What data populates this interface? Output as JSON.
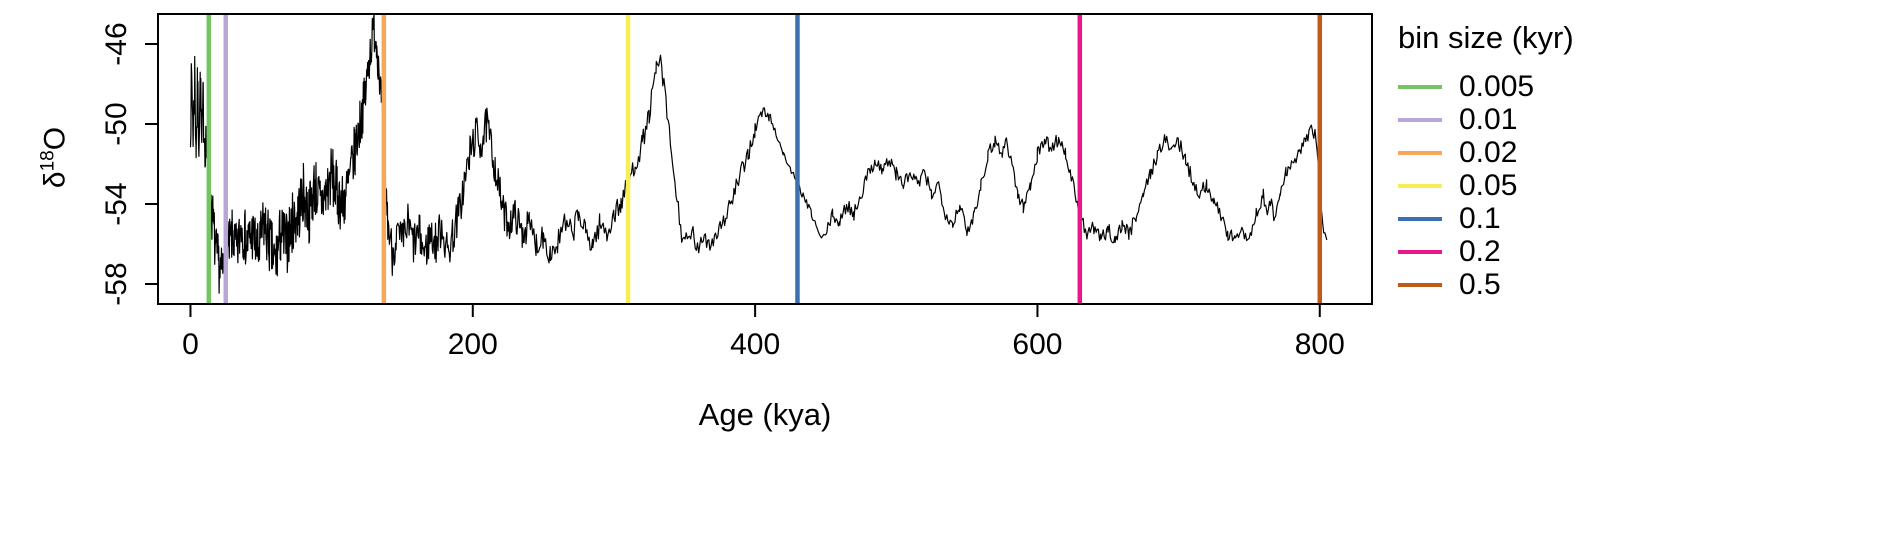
{
  "figure": {
    "xlabel": "Age (kya)",
    "ylabel": "δ¹⁸O",
    "ylabel_parts": {
      "delta": "δ",
      "superscript": "18",
      "element": "O"
    }
  },
  "legend": {
    "title": "bin size (kyr)",
    "entries": [
      {
        "label": "0.005",
        "color": "#74c365"
      },
      {
        "label": "0.01",
        "color": "#b9a6d9"
      },
      {
        "label": "0.02",
        "color": "#f9a65a"
      },
      {
        "label": "0.05",
        "color": "#f7ee55"
      },
      {
        "label": "0.1",
        "color": "#3c6fb0"
      },
      {
        "label": "0.2",
        "color": "#e8178a"
      },
      {
        "label": "0.5",
        "color": "#bf5b17"
      }
    ]
  },
  "chart_data": {
    "type": "line",
    "xlabel": "Age (kya)",
    "ylabel": "δ18O",
    "xlim": [
      -23,
      837
    ],
    "ylim": [
      -59,
      -44.5
    ],
    "x_ticks": [
      0,
      200,
      400,
      600,
      800
    ],
    "y_ticks": [
      -58,
      -54,
      -50,
      -46
    ],
    "grid": false,
    "legend_position": "right",
    "line_color": "#000000",
    "vlines": [
      {
        "x": 13,
        "bin_size": "0.005",
        "color": "#74c365"
      },
      {
        "x": 25,
        "bin_size": "0.01",
        "color": "#b9a6d9"
      },
      {
        "x": 137,
        "bin_size": "0.02",
        "color": "#f9a65a"
      },
      {
        "x": 310,
        "bin_size": "0.05",
        "color": "#f7ee55"
      },
      {
        "x": 430,
        "bin_size": "0.1",
        "color": "#3c6fb0"
      },
      {
        "x": 630,
        "bin_size": "0.2",
        "color": "#e8178a"
      },
      {
        "x": 800,
        "bin_size": "0.5",
        "color": "#bf5b17"
      }
    ],
    "points": [
      [
        0,
        -49.5
      ],
      [
        1,
        -48
      ],
      [
        2,
        -50.5
      ],
      [
        3,
        -47.5
      ],
      [
        4,
        -51
      ],
      [
        5,
        -48.5
      ],
      [
        6,
        -50.5
      ],
      [
        7,
        -48
      ],
      [
        8,
        -51.5
      ],
      [
        9,
        -49
      ],
      [
        10,
        -50.5
      ],
      [
        11,
        -51
      ],
      [
        12,
        -52
      ],
      [
        14,
        -53.5
      ],
      [
        16,
        -55
      ],
      [
        18,
        -56.5
      ],
      [
        20,
        -57
      ],
      [
        22,
        -57.5
      ],
      [
        24,
        -57
      ],
      [
        26,
        -56.5
      ],
      [
        28,
        -56
      ],
      [
        30,
        -55.5
      ],
      [
        33,
        -56.5
      ],
      [
        36,
        -55
      ],
      [
        40,
        -56
      ],
      [
        44,
        -55.5
      ],
      [
        48,
        -56.5
      ],
      [
        52,
        -55
      ],
      [
        56,
        -56
      ],
      [
        60,
        -57
      ],
      [
        64,
        -55.5
      ],
      [
        68,
        -56
      ],
      [
        72,
        -55
      ],
      [
        76,
        -54.5
      ],
      [
        80,
        -53.5
      ],
      [
        84,
        -54.5
      ],
      [
        88,
        -53
      ],
      [
        92,
        -54
      ],
      [
        96,
        -53.5
      ],
      [
        100,
        -52.5
      ],
      [
        104,
        -53.5
      ],
      [
        108,
        -54
      ],
      [
        112,
        -53
      ],
      [
        116,
        -51.5
      ],
      [
        120,
        -50
      ],
      [
        124,
        -48.5
      ],
      [
        127,
        -46.5
      ],
      [
        130,
        -45.2
      ],
      [
        132,
        -46
      ],
      [
        134,
        -47.5
      ],
      [
        136,
        -50
      ],
      [
        138,
        -53
      ],
      [
        140,
        -55
      ],
      [
        143,
        -56.5
      ],
      [
        146,
        -55.5
      ],
      [
        150,
        -56
      ],
      [
        154,
        -55
      ],
      [
        158,
        -56
      ],
      [
        162,
        -55.5
      ],
      [
        166,
        -56.5
      ],
      [
        170,
        -55.5
      ],
      [
        174,
        -56
      ],
      [
        178,
        -55
      ],
      [
        182,
        -56.5
      ],
      [
        186,
        -55.5
      ],
      [
        190,
        -54.5
      ],
      [
        194,
        -53
      ],
      [
        198,
        -51.5
      ],
      [
        202,
        -50.5
      ],
      [
        206,
        -51
      ],
      [
        210,
        -50
      ],
      [
        214,
        -51.5
      ],
      [
        218,
        -53
      ],
      [
        222,
        -54.5
      ],
      [
        226,
        -55
      ],
      [
        230,
        -54.5
      ],
      [
        235,
        -55.5
      ],
      [
        240,
        -55
      ],
      [
        245,
        -56
      ],
      [
        250,
        -55.5
      ],
      [
        255,
        -56.5
      ],
      [
        260,
        -56
      ],
      [
        265,
        -55
      ],
      [
        270,
        -55.5
      ],
      [
        275,
        -54.5
      ],
      [
        280,
        -55.5
      ],
      [
        285,
        -56
      ],
      [
        290,
        -55
      ],
      [
        295,
        -55.5
      ],
      [
        300,
        -54.5
      ],
      [
        305,
        -54
      ],
      [
        310,
        -53
      ],
      [
        315,
        -52
      ],
      [
        320,
        -51
      ],
      [
        325,
        -49.5
      ],
      [
        330,
        -47.3
      ],
      [
        333,
        -46.8
      ],
      [
        336,
        -48.5
      ],
      [
        340,
        -51
      ],
      [
        344,
        -53.5
      ],
      [
        348,
        -55.5
      ],
      [
        352,
        -56
      ],
      [
        356,
        -55.5
      ],
      [
        360,
        -56.5
      ],
      [
        364,
        -55.5
      ],
      [
        368,
        -56
      ],
      [
        372,
        -55.5
      ],
      [
        376,
        -55
      ],
      [
        380,
        -54.5
      ],
      [
        385,
        -53.5
      ],
      [
        390,
        -52.5
      ],
      [
        395,
        -51.5
      ],
      [
        400,
        -50.3
      ],
      [
        405,
        -49.4
      ],
      [
        410,
        -49.6
      ],
      [
        415,
        -50.5
      ],
      [
        420,
        -51.5
      ],
      [
        430,
        -53
      ],
      [
        440,
        -54.5
      ],
      [
        447,
        -55.8
      ],
      [
        450,
        -55.5
      ],
      [
        455,
        -54.5
      ],
      [
        460,
        -55
      ],
      [
        465,
        -54
      ],
      [
        470,
        -54.5
      ],
      [
        475,
        -53.5
      ],
      [
        480,
        -52.5
      ],
      [
        485,
        -51.8
      ],
      [
        490,
        -52.3
      ],
      [
        495,
        -51.8
      ],
      [
        500,
        -52.5
      ],
      [
        505,
        -53
      ],
      [
        510,
        -52.5
      ],
      [
        515,
        -53
      ],
      [
        520,
        -52.5
      ],
      [
        525,
        -53.5
      ],
      [
        530,
        -53
      ],
      [
        535,
        -54.5
      ],
      [
        540,
        -55
      ],
      [
        545,
        -54
      ],
      [
        550,
        -55.5
      ],
      [
        555,
        -54.5
      ],
      [
        560,
        -53
      ],
      [
        565,
        -51.5
      ],
      [
        570,
        -50.8
      ],
      [
        575,
        -51.5
      ],
      [
        578,
        -50.8
      ],
      [
        582,
        -52
      ],
      [
        586,
        -53.5
      ],
      [
        590,
        -54.2
      ],
      [
        595,
        -53
      ],
      [
        600,
        -51.5
      ],
      [
        605,
        -50.8
      ],
      [
        610,
        -51.2
      ],
      [
        615,
        -50.7
      ],
      [
        620,
        -51.5
      ],
      [
        625,
        -53
      ],
      [
        630,
        -54.5
      ],
      [
        635,
        -55.5
      ],
      [
        640,
        -55.2
      ],
      [
        645,
        -55.8
      ],
      [
        650,
        -55.3
      ],
      [
        655,
        -55.8
      ],
      [
        660,
        -55
      ],
      [
        665,
        -55.5
      ],
      [
        670,
        -54.5
      ],
      [
        675,
        -53.5
      ],
      [
        680,
        -52.5
      ],
      [
        685,
        -51.5
      ],
      [
        690,
        -50.8
      ],
      [
        695,
        -51.2
      ],
      [
        700,
        -50.9
      ],
      [
        705,
        -51.8
      ],
      [
        710,
        -52.8
      ],
      [
        715,
        -53.5
      ],
      [
        720,
        -53
      ],
      [
        725,
        -54
      ],
      [
        730,
        -54.5
      ],
      [
        735,
        -55.5
      ],
      [
        740,
        -55.8
      ],
      [
        745,
        -55.2
      ],
      [
        750,
        -55.8
      ],
      [
        755,
        -54.5
      ],
      [
        760,
        -53.5
      ],
      [
        762,
        -54.5
      ],
      [
        765,
        -53.8
      ],
      [
        768,
        -54.8
      ],
      [
        772,
        -53.5
      ],
      [
        776,
        -52.5
      ],
      [
        780,
        -52
      ],
      [
        785,
        -51.5
      ],
      [
        790,
        -50.8
      ],
      [
        795,
        -50.2
      ],
      [
        798,
        -51
      ],
      [
        800,
        -53
      ],
      [
        802,
        -55
      ],
      [
        805,
        -55.8
      ]
    ],
    "noise_envelope": [
      [
        0,
        1.7
      ],
      [
        15,
        1.5
      ],
      [
        25,
        1.3
      ],
      [
        60,
        1.6
      ],
      [
        110,
        1.5
      ],
      [
        130,
        1.1
      ],
      [
        145,
        1.1
      ],
      [
        200,
        1.0
      ],
      [
        230,
        0.8
      ],
      [
        280,
        0.6
      ],
      [
        330,
        0.5
      ],
      [
        400,
        0.45
      ],
      [
        418,
        0.15
      ],
      [
        445,
        0.2
      ],
      [
        460,
        0.35
      ],
      [
        805,
        0.35
      ]
    ]
  }
}
